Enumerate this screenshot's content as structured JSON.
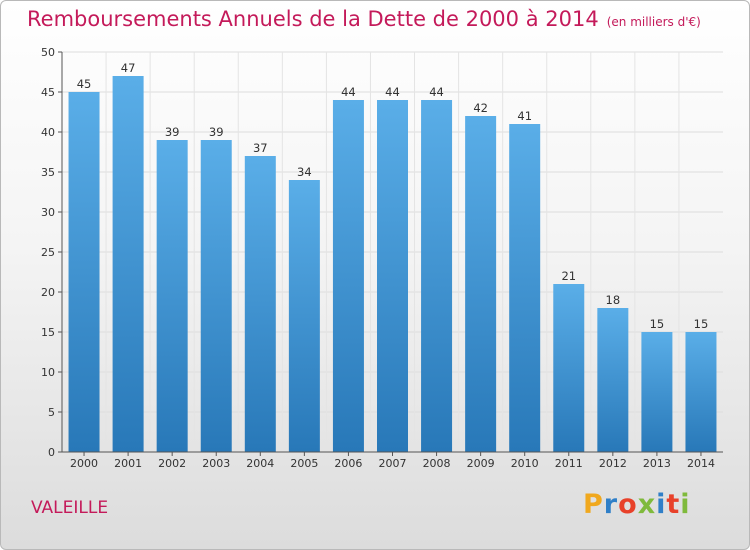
{
  "header": {
    "title": "Remboursements Annuels de la Dette de 2000 à 2014",
    "subtitle": "(en milliers d'€)"
  },
  "footer": {
    "commune": "VALEILLE",
    "logo": {
      "letters": [
        "P",
        "r",
        "o",
        "x",
        "i",
        "t",
        "i"
      ],
      "colors": [
        "#f0a81e",
        "#2f7fc8",
        "#e8412a",
        "#7fba3c",
        "#2f7fc8",
        "#e8412a",
        "#7fba3c"
      ]
    }
  },
  "colors": {
    "accent": "#c41a5a",
    "bar_top": "#5aaee8",
    "bar_bottom": "#2878b8"
  },
  "chart_data": {
    "type": "bar",
    "categories": [
      "2000",
      "2001",
      "2002",
      "2003",
      "2004",
      "2005",
      "2006",
      "2007",
      "2008",
      "2009",
      "2010",
      "2011",
      "2012",
      "2013",
      "2014"
    ],
    "values": [
      45,
      47,
      39,
      39,
      37,
      34,
      44,
      44,
      44,
      42,
      41,
      21,
      18,
      15,
      15
    ],
    "value_labels": [
      "45",
      "47",
      "39",
      "39",
      "37",
      "34",
      "44",
      "44",
      "44",
      "42",
      "41",
      "21",
      "18",
      "15",
      "15"
    ],
    "y_ticks": [
      "0",
      "5",
      "10",
      "15",
      "20",
      "25",
      "30",
      "35",
      "40",
      "45",
      "50"
    ],
    "ylim": [
      0,
      50
    ],
    "grid": true
  }
}
